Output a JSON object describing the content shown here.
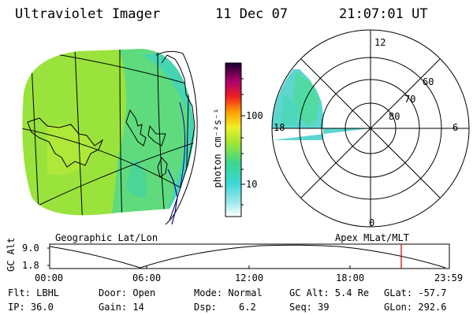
{
  "header": {
    "instrument": "Ultraviolet Imager",
    "date": "11 Dec 07",
    "time": "21:07:01 UT"
  },
  "colorbar": {
    "label": "photon cm⁻²s⁻¹",
    "ticks": [
      "100",
      "10"
    ]
  },
  "left_panel": {
    "caption": "Geographic Lat/Lon"
  },
  "polar_plot": {
    "caption": "Apex MLat/MLT",
    "mlt_labels": [
      "12",
      "18",
      "6",
      "0"
    ],
    "lat_labels": [
      "60",
      "70",
      "80"
    ]
  },
  "timeline": {
    "ylabel": "GC Alt",
    "ytick_top": "9.0",
    "ytick_bottom": "1.8",
    "xticks": [
      "00:00",
      "06:00",
      "12:00",
      "18:00",
      "23:59"
    ],
    "current_marker_time": "21:07"
  },
  "footer": {
    "filter": "Flt: LBHL",
    "door": "Door: Open",
    "mode": "Mode: Normal",
    "gc_alt": "GC Alt: 5.4 Re",
    "glat": "GLat: -57.7",
    "ip": "IP: 36.0",
    "gain": "Gain: 14",
    "dsp_label": "Dsp:",
    "dsp_value": "6.2",
    "seq": "Seq: 39",
    "glon": "GLon: 292.6"
  },
  "colors": {
    "marker": "#cc0000",
    "coast": "#0000aa"
  }
}
